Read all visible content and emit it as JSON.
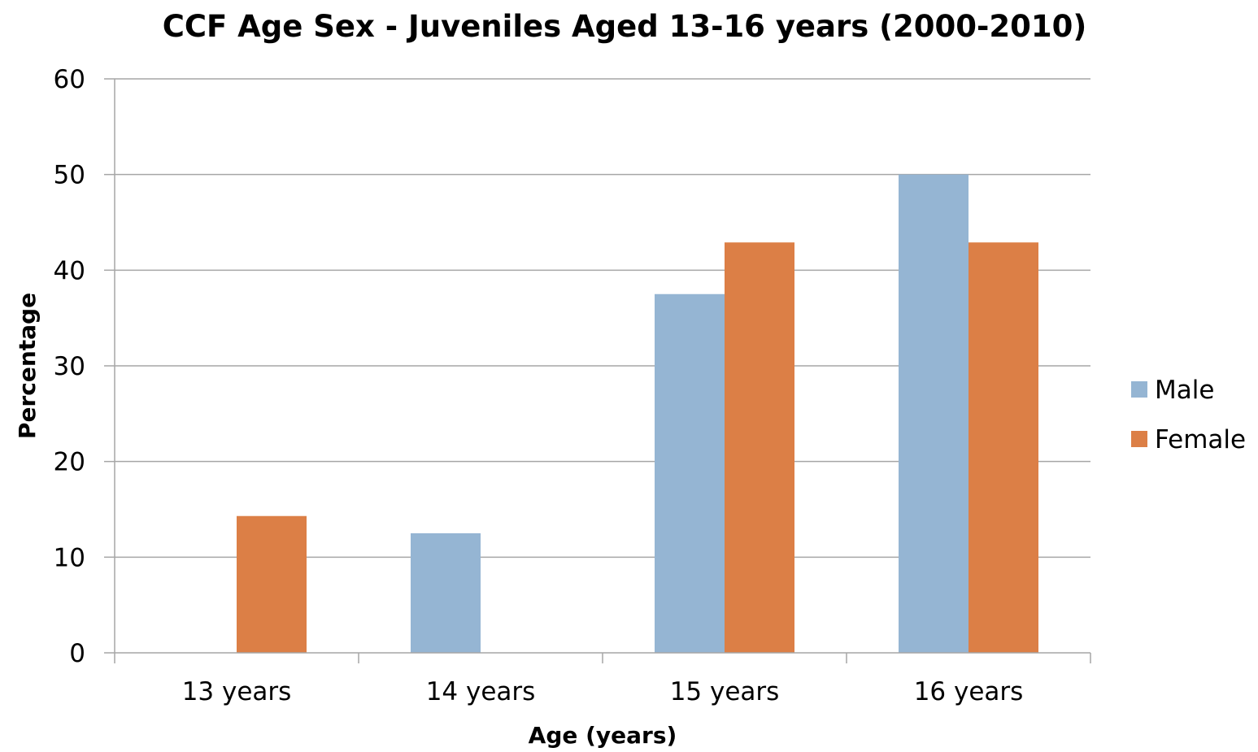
{
  "chart_data": {
    "type": "bar",
    "title": "CCF Age Sex - Juveniles Aged 13-16 years (2000-2010)",
    "xlabel": "Age (years)",
    "ylabel": "Percentage",
    "categories": [
      "13 years",
      "14 years",
      "15 years",
      "16 years"
    ],
    "series": [
      {
        "name": "Male",
        "color": "#95b5d3",
        "values": [
          0,
          12.5,
          37.5,
          50
        ]
      },
      {
        "name": "Female",
        "color": "#dc7f46",
        "values": [
          14.3,
          0,
          42.9,
          42.9
        ]
      }
    ],
    "ylim": [
      0,
      60
    ],
    "yticks": [
      "0",
      "10",
      "20",
      "30",
      "40",
      "50",
      "60"
    ],
    "grid": true,
    "legend_position": "right",
    "gridline_color": "#a6a6a6"
  }
}
